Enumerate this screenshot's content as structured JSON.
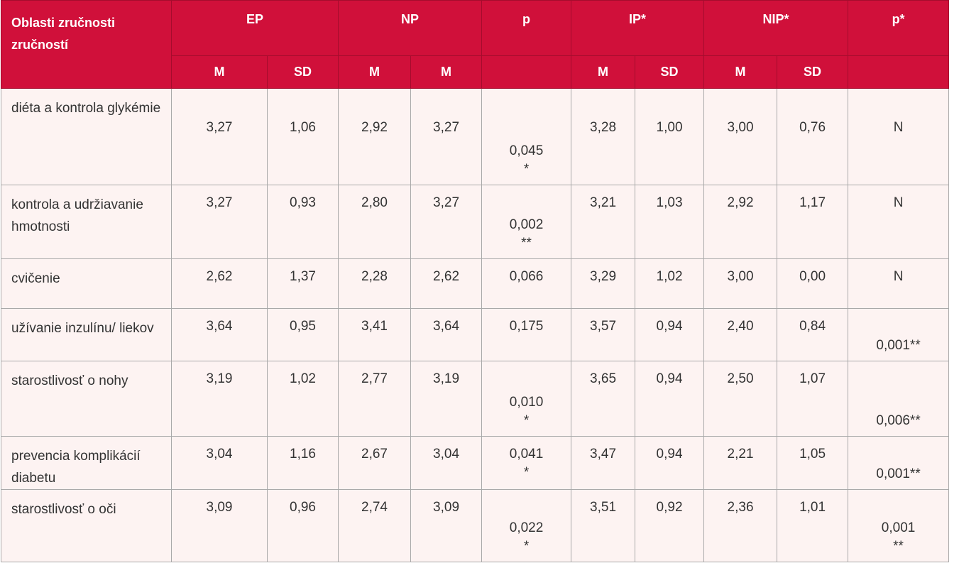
{
  "table": {
    "corner": "Oblasti zručnosti zručností",
    "groups": [
      "EP",
      "NP",
      "p",
      "IP*",
      "NIP*",
      "p*"
    ],
    "subheaders": [
      "M",
      "SD",
      "M",
      "M",
      "M",
      "SD",
      "M",
      "SD"
    ],
    "rows": [
      {
        "label": "diéta a kontrola glykémie",
        "values": [
          "3,27",
          "1,06",
          "2,92",
          "3,27",
          [
            "0,045",
            "*"
          ],
          "3,28",
          "1,00",
          "3,00",
          "0,76",
          "N"
        ]
      },
      {
        "label": "kontrola a udržiavanie hmotnosti",
        "values": [
          "3,27",
          "0,93",
          "2,80",
          "3,27",
          [
            "0,002",
            "**"
          ],
          "3,21",
          "1,03",
          "2,92",
          "1,17",
          "N"
        ]
      },
      {
        "label": "cvičenie",
        "values": [
          "2,62",
          "1,37",
          "2,28",
          "2,62",
          "0,066",
          "3,29",
          "1,02",
          "3,00",
          "0,00",
          "N"
        ]
      },
      {
        "label": "užívanie inzulínu/ liekov",
        "values": [
          "3,64",
          "0,95",
          "3,41",
          "3,64",
          "0,175",
          "3,57",
          "0,94",
          "2,40",
          "0,84",
          "0,001**"
        ]
      },
      {
        "label": "starostlivosť o nohy",
        "values": [
          "3,19",
          "1,02",
          "2,77",
          "3,19",
          [
            "0,010",
            "*"
          ],
          "3,65",
          "0,94",
          "2,50",
          "1,07",
          "0,006**"
        ]
      },
      {
        "label": "prevencia komplikácií diabetu",
        "values": [
          "3,04",
          "1,16",
          "2,67",
          "3,04",
          [
            "0,041",
            "*"
          ],
          "3,47",
          "0,94",
          "2,21",
          "1,05",
          "0,001**"
        ]
      },
      {
        "label": "starostlivosť o oči",
        "values": [
          "3,09",
          "0,96",
          "2,74",
          "3,09",
          [
            "0,022",
            "*"
          ],
          "3,51",
          "0,92",
          "2,36",
          "1,01",
          [
            "0,001",
            "**"
          ]
        ]
      }
    ]
  }
}
